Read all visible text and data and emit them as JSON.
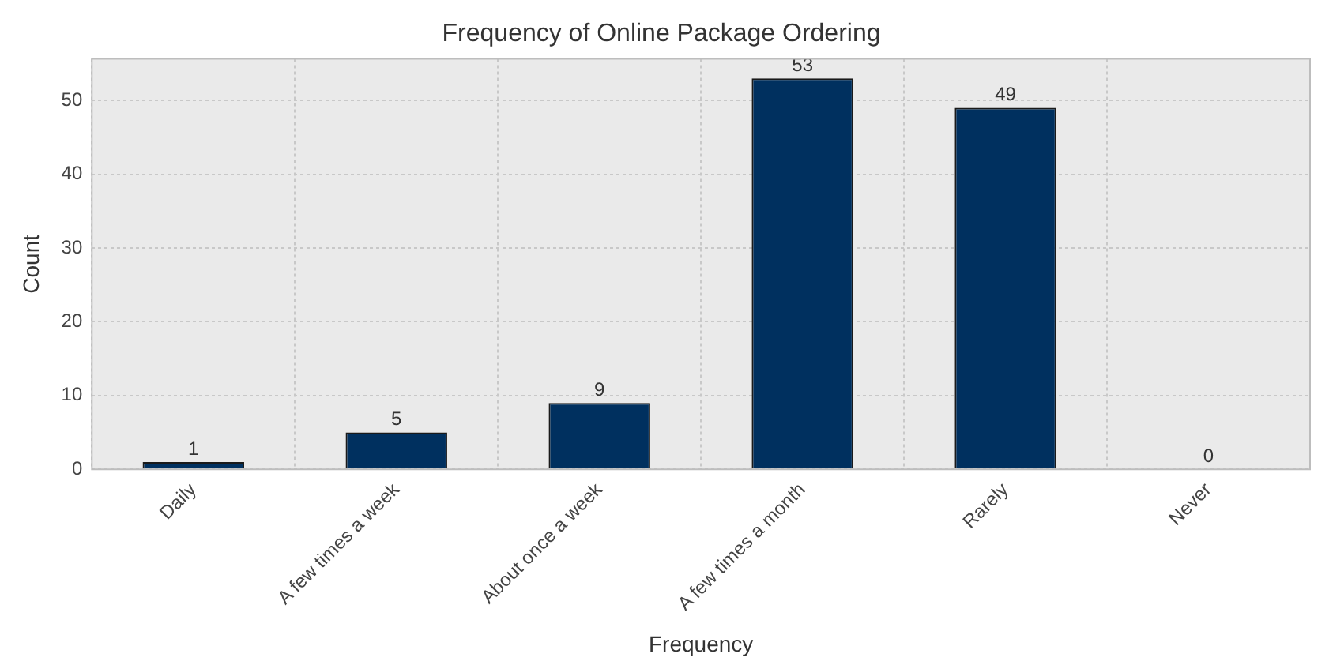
{
  "chart_data": {
    "type": "bar",
    "title": "Frequency of Online Package Ordering",
    "xlabel": "Frequency",
    "ylabel": "Count",
    "categories": [
      "Daily",
      "A few times a week",
      "About once a week",
      "A few times a month",
      "Rarely",
      "Never"
    ],
    "values": [
      1,
      5,
      9,
      53,
      49,
      0
    ],
    "color": "#00305f",
    "ylim": [
      0,
      55.65
    ],
    "yticks": [
      0,
      10,
      20,
      30,
      40,
      50
    ],
    "grid": true,
    "data_labels": true
  }
}
